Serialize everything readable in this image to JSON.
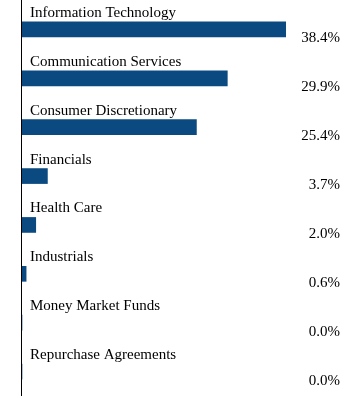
{
  "chart_data": {
    "type": "bar",
    "orientation": "horizontal",
    "categories": [
      "Information Technology",
      "Communication Services",
      "Consumer Discretionary",
      "Financials",
      "Health Care",
      "Industrials",
      "Money Market Funds",
      "Repurchase Agreements"
    ],
    "values": [
      38.4,
      29.9,
      25.4,
      3.7,
      2.0,
      0.6,
      0.0,
      0.0
    ],
    "value_labels": [
      "38.4%",
      "29.9%",
      "25.4%",
      "3.7%",
      "2.0%",
      "0.6%",
      "0.0%",
      "0.0%"
    ],
    "color": "#0b4a80",
    "xlim": [
      0,
      45
    ],
    "tick_labels": false,
    "data_labels": true,
    "grid": false
  }
}
